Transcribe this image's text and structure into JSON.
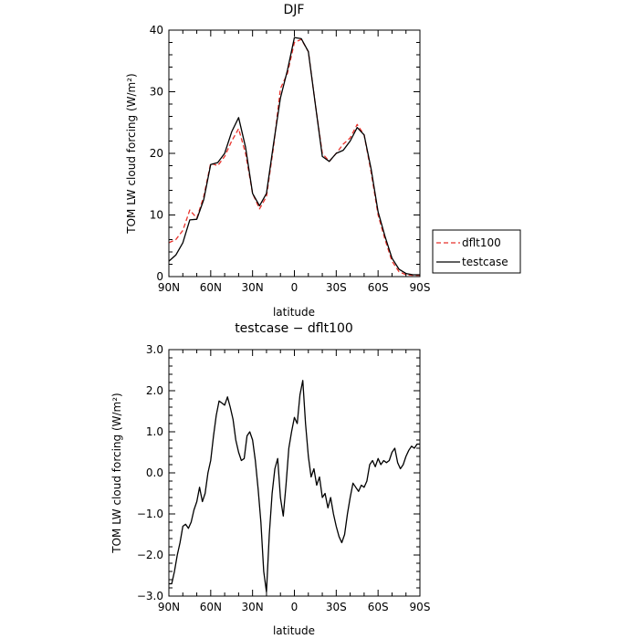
{
  "chart_data": [
    {
      "type": "line",
      "title": "DJF",
      "xlabel": "latitude",
      "ylabel": "TOM LW cloud forcing (W/m²)",
      "xlim": [
        90,
        -90
      ],
      "ylim": [
        0,
        40
      ],
      "x_ticks": [
        90,
        60,
        30,
        0,
        -30,
        -60,
        -90
      ],
      "x_tick_labels": [
        "90N",
        "60N",
        "30N",
        "0",
        "30S",
        "60S",
        "90S"
      ],
      "y_ticks": [
        0,
        10,
        20,
        30,
        40
      ],
      "y_tick_labels": [
        "0",
        "10",
        "20",
        "30",
        "40"
      ],
      "legend": {
        "position": "right",
        "entries": [
          "dflt100",
          "testcase"
        ]
      },
      "series": [
        {
          "name": "dflt100",
          "color": "#e8312a",
          "dash": "dashed",
          "x": [
            90,
            85,
            80,
            75,
            70,
            65,
            60,
            55,
            50,
            45,
            40,
            35,
            30,
            25,
            20,
            15,
            10,
            5,
            0,
            -5,
            -10,
            -15,
            -20,
            -25,
            -30,
            -35,
            -40,
            -45,
            -50,
            -55,
            -60,
            -65,
            -70,
            -75,
            -80,
            -85,
            -90
          ],
          "values": [
            5.5,
            6.0,
            7.5,
            10.8,
            9.5,
            13.0,
            18.4,
            18.0,
            19.5,
            22.0,
            24.0,
            20.0,
            13.5,
            11.0,
            13.0,
            21.0,
            30.5,
            33.0,
            38.0,
            38.5,
            36.5,
            28.0,
            20.0,
            18.7,
            20.0,
            21.5,
            22.5,
            24.7,
            23.0,
            17.0,
            10.0,
            6.0,
            2.5,
            0.8,
            0.3,
            0.2,
            0.2
          ]
        },
        {
          "name": "testcase",
          "color": "#000000",
          "dash": "solid",
          "x": [
            90,
            85,
            80,
            75,
            70,
            65,
            60,
            55,
            50,
            45,
            40,
            35,
            30,
            25,
            20,
            15,
            10,
            5,
            0,
            -5,
            -10,
            -15,
            -20,
            -25,
            -30,
            -35,
            -40,
            -45,
            -50,
            -55,
            -60,
            -65,
            -70,
            -75,
            -80,
            -85,
            -90
          ],
          "values": [
            2.5,
            3.5,
            5.5,
            9.2,
            9.3,
            12.5,
            18.2,
            18.5,
            20.0,
            23.5,
            25.8,
            21.0,
            13.5,
            11.5,
            13.5,
            21.5,
            29.0,
            33.5,
            38.8,
            38.6,
            36.5,
            28.0,
            19.5,
            18.7,
            20.0,
            20.5,
            22.0,
            24.2,
            23.0,
            17.5,
            10.5,
            6.5,
            3.0,
            1.2,
            0.5,
            0.3,
            0.3
          ]
        }
      ]
    },
    {
      "type": "line",
      "title": "testcase − dflt100",
      "xlabel": "latitude",
      "ylabel": "TOM LW cloud forcing (W/m²)",
      "xlim": [
        90,
        -90
      ],
      "ylim": [
        -3,
        3
      ],
      "x_ticks": [
        90,
        60,
        30,
        0,
        -30,
        -60,
        -90
      ],
      "x_tick_labels": [
        "90N",
        "60N",
        "30N",
        "0",
        "30S",
        "60S",
        "90S"
      ],
      "y_ticks": [
        -3,
        -2,
        -1,
        0,
        1,
        2,
        3
      ],
      "y_tick_labels": [
        "−3.0",
        "−2.0",
        "−1.0",
        "0.0",
        "1.0",
        "2.0",
        "3.0"
      ],
      "series": [
        {
          "color": "#000000",
          "dash": "solid",
          "x": [
            90,
            88,
            86,
            84,
            82,
            80,
            78,
            76,
            74,
            72,
            70,
            68,
            66,
            64,
            62,
            60,
            58,
            56,
            54,
            52,
            50,
            48,
            46,
            44,
            42,
            40,
            38,
            36,
            34,
            32,
            30,
            28,
            26,
            24,
            22,
            20,
            18,
            16,
            14,
            12,
            10,
            8,
            6,
            4,
            2,
            0,
            -2,
            -4,
            -6,
            -8,
            -10,
            -12,
            -14,
            -16,
            -18,
            -20,
            -22,
            -24,
            -26,
            -28,
            -30,
            -32,
            -34,
            -36,
            -38,
            -40,
            -42,
            -44,
            -46,
            -48,
            -50,
            -52,
            -54,
            -56,
            -58,
            -60,
            -62,
            -64,
            -66,
            -68,
            -70,
            -72,
            -74,
            -76,
            -78,
            -80,
            -82,
            -84,
            -86,
            -88,
            -90
          ],
          "values": [
            -2.7,
            -2.7,
            -2.4,
            -2.0,
            -1.7,
            -1.3,
            -1.25,
            -1.35,
            -1.2,
            -0.9,
            -0.7,
            -0.35,
            -0.7,
            -0.5,
            0.0,
            0.3,
            0.9,
            1.4,
            1.75,
            1.7,
            1.65,
            1.85,
            1.6,
            1.3,
            0.8,
            0.5,
            0.3,
            0.35,
            0.9,
            1.0,
            0.8,
            0.3,
            -0.4,
            -1.2,
            -2.4,
            -2.9,
            -1.5,
            -0.5,
            0.1,
            0.35,
            -0.6,
            -1.05,
            -0.3,
            0.6,
            1.0,
            1.35,
            1.2,
            1.9,
            2.25,
            1.2,
            0.4,
            -0.1,
            0.1,
            -0.3,
            -0.1,
            -0.6,
            -0.5,
            -0.85,
            -0.6,
            -1.0,
            -1.3,
            -1.55,
            -1.7,
            -1.5,
            -1.0,
            -0.6,
            -0.25,
            -0.35,
            -0.45,
            -0.3,
            -0.35,
            -0.2,
            0.2,
            0.3,
            0.15,
            0.35,
            0.2,
            0.3,
            0.25,
            0.3,
            0.5,
            0.6,
            0.25,
            0.1,
            0.2,
            0.4,
            0.55,
            0.65,
            0.6,
            0.7,
            0.7
          ]
        }
      ]
    }
  ]
}
